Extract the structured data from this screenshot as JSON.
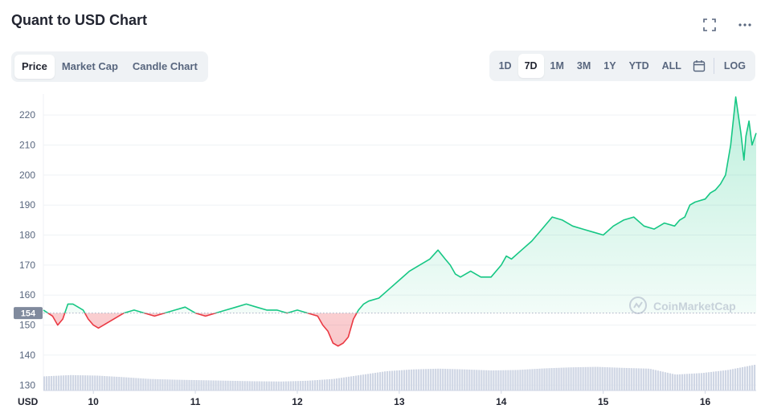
{
  "header": {
    "title": "Quant to USD Chart"
  },
  "icons": {
    "fullscreen": "fullscreen-icon",
    "more": "more-icon",
    "calendar": "calendar-icon",
    "watermark_logo": "coinmarketcap-logo"
  },
  "view_tabs": [
    {
      "label": "Price",
      "active": true
    },
    {
      "label": "Market Cap",
      "active": false
    },
    {
      "label": "Candle Chart",
      "active": false
    }
  ],
  "range_tabs": [
    {
      "label": "1D",
      "active": false
    },
    {
      "label": "7D",
      "active": true
    },
    {
      "label": "1M",
      "active": false
    },
    {
      "label": "3M",
      "active": false
    },
    {
      "label": "1Y",
      "active": false
    },
    {
      "label": "YTD",
      "active": false
    },
    {
      "label": "ALL",
      "active": false
    }
  ],
  "log_label": "LOG",
  "watermark": "CoinMarketCap",
  "colors": {
    "up": "#16c784",
    "down": "#ea3943",
    "volume": "#cfd6e4",
    "grid": "#eff2f5",
    "text": "#58667e"
  },
  "chart_data": {
    "type": "line",
    "currency_label": "USD",
    "y_ticks": [
      130,
      140,
      150,
      160,
      170,
      180,
      190,
      200,
      210,
      220
    ],
    "ylim": [
      128.2,
      227
    ],
    "x_ticks": [
      "10",
      "11",
      "12",
      "13",
      "14",
      "15",
      "16"
    ],
    "x_tick_values": [
      10,
      11,
      12,
      13,
      14,
      15,
      16
    ],
    "xlim": [
      9.51,
      16.5
    ],
    "reference_price": 154,
    "reference_label": "154",
    "series": [
      {
        "x": [
          9.51,
          9.6,
          9.65,
          9.7,
          9.75,
          9.8,
          9.9,
          9.95,
          10.0,
          10.05,
          10.1,
          10.2,
          10.3,
          10.4,
          10.5,
          10.6,
          10.7,
          10.8,
          10.9,
          11.0,
          11.1,
          11.2,
          11.3,
          11.4,
          11.5,
          11.6,
          11.7,
          11.8,
          11.9,
          12.0,
          12.1,
          12.2,
          12.25,
          12.3,
          12.35,
          12.4,
          12.45,
          12.5,
          12.55,
          12.6,
          12.65,
          12.7,
          12.8,
          12.9,
          13.0,
          13.1,
          13.2,
          13.3,
          13.38,
          13.45,
          13.5,
          13.55,
          13.6,
          13.7,
          13.8,
          13.9,
          14.0,
          14.05,
          14.1,
          14.2,
          14.3,
          14.4,
          14.5,
          14.6,
          14.7,
          14.8,
          14.9,
          15.0,
          15.1,
          15.2,
          15.3,
          15.4,
          15.5,
          15.6,
          15.7,
          15.75,
          15.8,
          15.85,
          15.9,
          16.0,
          16.05,
          16.1,
          16.15,
          16.2,
          16.25,
          16.3,
          16.35,
          16.38,
          16.4,
          16.43,
          16.46,
          16.5
        ],
        "y": [
          155,
          153,
          150,
          152,
          157,
          157,
          155,
          152,
          150,
          149,
          150,
          152,
          154,
          155,
          154,
          153,
          154,
          155,
          156,
          154,
          153,
          154,
          155,
          156,
          157,
          156,
          155,
          155,
          154,
          155,
          154,
          153,
          150,
          148,
          144,
          143,
          144,
          146,
          152,
          155,
          157,
          158,
          159,
          162,
          165,
          168,
          170,
          172,
          175,
          172,
          170,
          167,
          166,
          168,
          166,
          166,
          170,
          173,
          172,
          175,
          178,
          182,
          186,
          185,
          183,
          182,
          181,
          180,
          183,
          185,
          186,
          183,
          182,
          184,
          183,
          185,
          186,
          190,
          191,
          192,
          194,
          195,
          197,
          200,
          210,
          226,
          214,
          205,
          213,
          218,
          210,
          214
        ]
      }
    ],
    "volume_relative": [
      0.55,
      0.6,
      0.58,
      0.52,
      0.45,
      0.42,
      0.4,
      0.38,
      0.36,
      0.35,
      0.38,
      0.45,
      0.6,
      0.75,
      0.82,
      0.85,
      0.82,
      0.78,
      0.8,
      0.86,
      0.9,
      0.92,
      0.88,
      0.85,
      0.62,
      0.68,
      0.8,
      1.0
    ]
  }
}
